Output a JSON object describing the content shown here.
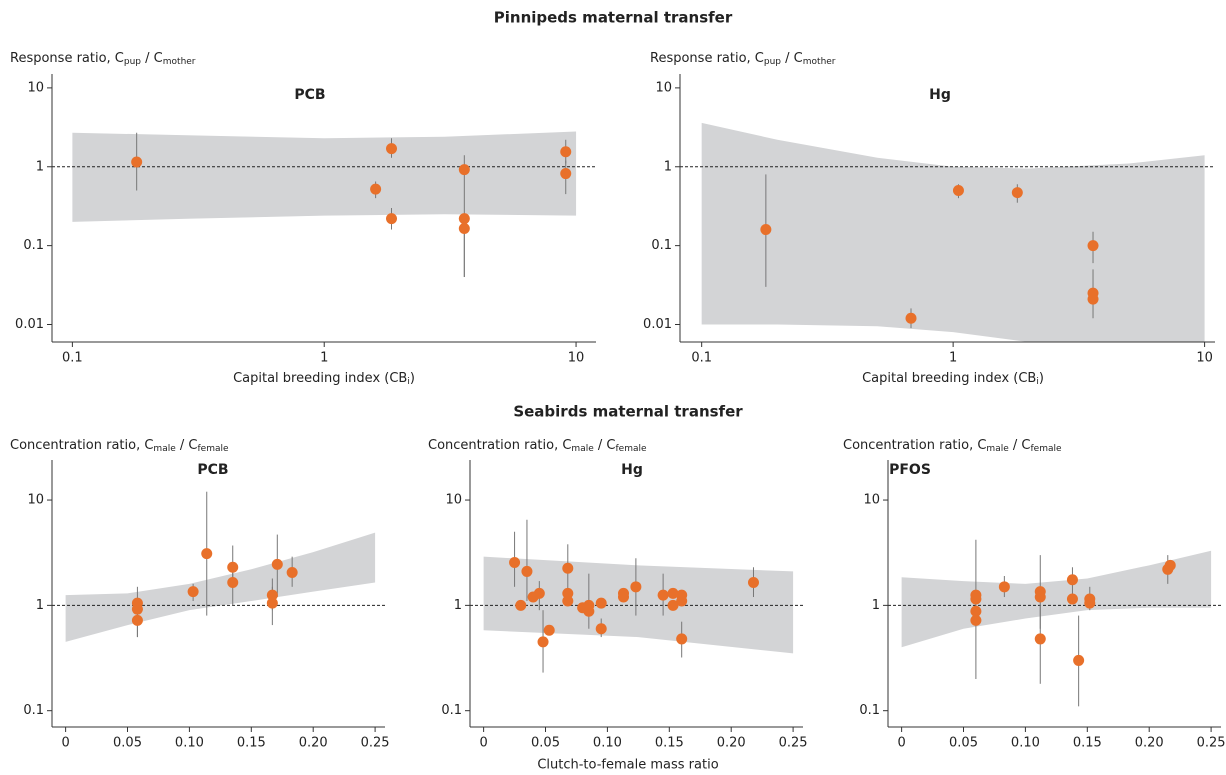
{
  "sections": [
    {
      "title": "Pinnipeds maternal transfer"
    },
    {
      "title": "Seabirds maternal transfer",
      "xlabel": "Clutch-to-female mass ratio"
    }
  ],
  "chart_data": [
    {
      "type": "scatter",
      "title": "PCB",
      "ylabel": [
        "Response ratio, C",
        "pup",
        " / C",
        "mother"
      ],
      "xlabel": [
        "Capital breeding index (CB",
        "i",
        ")"
      ],
      "xlog": true,
      "ylog": true,
      "xlim": [
        0.083,
        12
      ],
      "ylim": [
        0.006,
        15
      ],
      "xticks": [
        0.1,
        1,
        10
      ],
      "yticks": [
        0.01,
        0.1,
        1,
        10
      ],
      "reference_line": 1,
      "band": {
        "color": "#d3d4d6",
        "x": [
          0.1,
          0.3,
          1,
          3,
          10
        ],
        "high": [
          2.7,
          2.5,
          2.3,
          2.4,
          2.8
        ],
        "low": [
          0.2,
          0.22,
          0.24,
          0.25,
          0.24
        ]
      },
      "series": [
        {
          "color": "#e8702a",
          "x": [
            0.18,
            1.6,
            1.85,
            1.85,
            3.6,
            3.6,
            3.6,
            9.1,
            9.1
          ],
          "values": [
            1.15,
            0.52,
            1.7,
            0.22,
            0.92,
            0.22,
            0.165,
            1.55,
            0.82
          ],
          "lower": [
            0.5,
            0.4,
            1.3,
            0.16,
            0.04,
            null,
            0.04,
            1.1,
            0.45
          ],
          "upper": [
            2.7,
            0.65,
            2.3,
            0.3,
            1.4,
            null,
            0.25,
            2.2,
            1.2
          ]
        }
      ]
    },
    {
      "type": "scatter",
      "title": "Hg",
      "ylabel": [
        "Response ratio, C",
        "pup",
        " / C",
        "mother"
      ],
      "xlabel": [
        "Capital breeding index (CB",
        "i",
        ")"
      ],
      "xlog": true,
      "ylog": true,
      "xlim": [
        0.082,
        11
      ],
      "ylim": [
        0.006,
        15
      ],
      "xticks": [
        0.1,
        1,
        10
      ],
      "yticks": [
        0.01,
        0.1,
        1,
        10
      ],
      "reference_line": 1,
      "band": {
        "color": "#d3d4d6",
        "x": [
          0.1,
          0.2,
          0.5,
          1,
          2,
          5,
          10
        ],
        "high": [
          3.6,
          2.2,
          1.3,
          1.0,
          0.95,
          1.1,
          1.4
        ],
        "low": [
          0.01,
          0.01,
          0.0095,
          0.008,
          0.006,
          0.005,
          0.004
        ]
      },
      "series": [
        {
          "color": "#e8702a",
          "x": [
            0.18,
            0.68,
            1.05,
            1.8,
            3.6,
            3.6,
            3.6
          ],
          "values": [
            0.16,
            0.012,
            0.5,
            0.47,
            0.1,
            0.025,
            0.021
          ],
          "lower": [
            0.03,
            0.009,
            0.4,
            0.35,
            0.06,
            0.012,
            null
          ],
          "upper": [
            0.8,
            0.016,
            0.6,
            0.6,
            0.15,
            0.05,
            null
          ]
        }
      ]
    },
    {
      "type": "scatter",
      "title": "PCB",
      "ylabel": [
        "Concentration ratio, C",
        "male",
        " / C",
        "female"
      ],
      "xlog": false,
      "ylog": true,
      "xlim": [
        -0.011,
        0.258
      ],
      "ylim": [
        0.07,
        24
      ],
      "xticks": [
        0,
        0.05,
        {
          "value": 0.1,
          "label": "0.10"
        },
        0.15,
        {
          "value": 0.2,
          "label": "0.20"
        },
        0.25
      ],
      "yticks": [
        0.1,
        1,
        10
      ],
      "reference_line": 1,
      "band": {
        "color": "#d3d4d6",
        "x": [
          0,
          0.05,
          0.1,
          0.15,
          0.2,
          0.25
        ],
        "high": [
          1.25,
          1.3,
          1.6,
          2.2,
          3.2,
          4.9
        ],
        "low": [
          0.45,
          0.65,
          0.9,
          1.1,
          1.35,
          1.65
        ]
      },
      "series": [
        {
          "color": "#e8702a",
          "x": [
            0.058,
            0.058,
            0.058,
            0.103,
            0.114,
            0.135,
            0.135,
            0.167,
            0.167,
            0.171,
            0.183
          ],
          "values": [
            1.05,
            0.92,
            0.72,
            1.35,
            3.1,
            2.3,
            1.65,
            1.25,
            1.05,
            2.45,
            2.05
          ],
          "lower": [
            0.5,
            null,
            0.5,
            1.1,
            0.8,
            1.5,
            1.0,
            0.9,
            0.65,
            1.2,
            1.5
          ],
          "upper": [
            1.5,
            null,
            1.0,
            1.6,
            12,
            3.7,
            2.5,
            1.8,
            1.5,
            4.7,
            2.9
          ]
        }
      ]
    },
    {
      "type": "scatter",
      "title": "Hg",
      "ylabel": [
        "Concentration ratio, C",
        "male",
        " / C",
        "female"
      ],
      "xlog": false,
      "ylog": true,
      "xlim": [
        -0.011,
        0.258
      ],
      "ylim": [
        0.07,
        24
      ],
      "xticks": [
        0,
        0.05,
        {
          "value": 0.1,
          "label": "0.10"
        },
        0.15,
        {
          "value": 0.2,
          "label": "0.20"
        },
        0.25
      ],
      "yticks": [
        0.1,
        1,
        10
      ],
      "reference_line": 1,
      "band": {
        "color": "#d3d4d6",
        "x": [
          0,
          0.125,
          0.25
        ],
        "high": [
          2.9,
          2.4,
          2.1
        ],
        "low": [
          0.58,
          0.5,
          0.35
        ]
      },
      "series": [
        {
          "color": "#e8702a",
          "x": [
            0.025,
            0.03,
            0.035,
            0.04,
            0.045,
            0.048,
            0.053,
            0.068,
            0.068,
            0.068,
            0.08,
            0.085,
            0.085,
            0.095,
            0.095,
            0.113,
            0.113,
            0.123,
            0.145,
            0.153,
            0.153,
            0.16,
            0.16,
            0.16,
            0.218
          ],
          "values": [
            2.55,
            1.0,
            2.1,
            1.2,
            1.3,
            0.45,
            0.58,
            2.25,
            1.3,
            1.1,
            0.95,
            1.0,
            0.88,
            1.05,
            0.6,
            1.3,
            1.2,
            1.5,
            1.25,
            1.3,
            1.0,
            1.25,
            1.1,
            0.48,
            1.65
          ],
          "lower": [
            1.5,
            null,
            1.1,
            null,
            0.9,
            0.23,
            null,
            1.3,
            null,
            null,
            null,
            0.6,
            null,
            null,
            0.5,
            null,
            null,
            0.8,
            0.8,
            null,
            null,
            null,
            null,
            0.32,
            1.2
          ],
          "upper": [
            5,
            null,
            6.5,
            null,
            1.7,
            0.9,
            null,
            3.8,
            null,
            null,
            null,
            2.0,
            null,
            null,
            0.75,
            null,
            null,
            2.8,
            2.0,
            null,
            null,
            null,
            null,
            0.7,
            2.3
          ]
        }
      ]
    },
    {
      "type": "scatter",
      "title": "PFOS",
      "ylabel": [
        "Concentration ratio, C",
        "male",
        " / C",
        "female"
      ],
      "xlog": false,
      "ylog": true,
      "xlim": [
        -0.011,
        0.258
      ],
      "ylim": [
        0.07,
        24
      ],
      "xticks": [
        0,
        0.05,
        {
          "value": 0.1,
          "label": "0.10"
        },
        0.15,
        {
          "value": 0.2,
          "label": "0.20"
        },
        0.25
      ],
      "yticks": [
        0.1,
        1,
        10
      ],
      "reference_line": 1,
      "band": {
        "color": "#d3d4d6",
        "x": [
          0,
          0.05,
          0.1,
          0.15,
          0.2,
          0.25
        ],
        "high": [
          1.85,
          1.7,
          1.6,
          1.8,
          2.4,
          3.3
        ],
        "low": [
          0.4,
          0.6,
          0.75,
          0.9,
          0.95,
          0.95
        ]
      },
      "series": [
        {
          "color": "#e8702a",
          "x": [
            0.06,
            0.06,
            0.06,
            0.06,
            0.083,
            0.112,
            0.112,
            0.112,
            0.138,
            0.138,
            0.143,
            0.152,
            0.152,
            0.215,
            0.217
          ],
          "values": [
            1.25,
            1.15,
            0.88,
            0.72,
            1.5,
            1.35,
            1.2,
            0.48,
            1.75,
            1.15,
            0.3,
            1.15,
            1.05,
            2.2,
            2.4
          ],
          "lower": [
            0.2,
            null,
            null,
            null,
            1.2,
            0.6,
            null,
            0.18,
            1.2,
            null,
            0.11,
            0.9,
            null,
            1.6,
            null
          ],
          "upper": [
            4.2,
            null,
            null,
            null,
            1.9,
            3.0,
            null,
            1.0,
            2.3,
            null,
            0.8,
            1.5,
            null,
            3.0,
            null
          ]
        }
      ]
    }
  ]
}
